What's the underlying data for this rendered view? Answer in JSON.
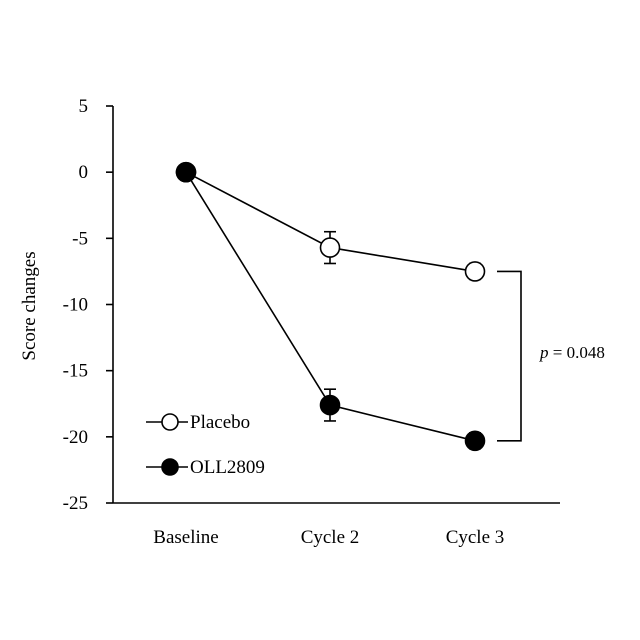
{
  "chart_data": {
    "type": "line",
    "ylabel": "Score changes",
    "ylim": [
      -25,
      5
    ],
    "yticks": [
      5,
      0,
      -5,
      -10,
      -15,
      -20,
      -25
    ],
    "categories": [
      "Baseline",
      "Cycle 2",
      "Cycle 3"
    ],
    "series": [
      {
        "name": "Placebo",
        "marker": "open-circle",
        "values": [
          0,
          -5.7,
          -7.5
        ],
        "errors": [
          0,
          1.2,
          0.6
        ]
      },
      {
        "name": "OLL2809",
        "marker": "filled-circle",
        "values": [
          0,
          -17.6,
          -20.3
        ],
        "errors": [
          0,
          1.2,
          0.6
        ]
      }
    ],
    "legend": "bottom-left",
    "grid": false,
    "annotation": {
      "p_symbol": "p",
      "p_rest": " = 0.048",
      "category": "Cycle 3"
    }
  }
}
